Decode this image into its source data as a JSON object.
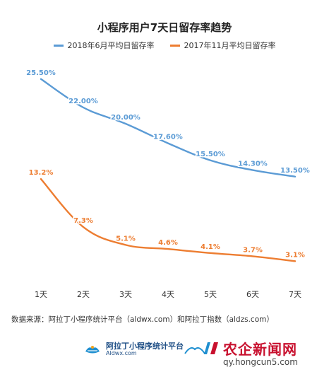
{
  "chart_data": {
    "type": "line",
    "title": "小程序用户7天日留存率趋势",
    "categories": [
      "1天",
      "2天",
      "3天",
      "4天",
      "5天",
      "6天",
      "7天"
    ],
    "ylim": [
      0,
      30
    ],
    "grid": false,
    "legend_position": "top-center",
    "series": [
      {
        "name": "2018年6月平均日留存率",
        "color": "#5b9bd5",
        "values": [
          25.5,
          22.0,
          20.0,
          17.6,
          15.5,
          14.3,
          13.5
        ],
        "labels": [
          "25.50%",
          "22.00%",
          "20.00%",
          "17.60%",
          "15.50%",
          "14.30%",
          "13.50%"
        ]
      },
      {
        "name": "2017年11月平均日留存率",
        "color": "#ed7d31",
        "values": [
          13.2,
          7.3,
          5.1,
          4.6,
          4.1,
          3.7,
          3.1
        ],
        "labels": [
          "13.2%",
          "7.3%",
          "5.1%",
          "4.6%",
          "4.1%",
          "3.7%",
          "3.1%"
        ]
      }
    ]
  },
  "source_note": "数据来源：阿拉丁小程序统计平台（aldwx.com）和阿拉丁指数（aldzs.com）",
  "footer": {
    "brand_name": "阿拉丁小程序统计平台",
    "brand_url": "Aldwx.com",
    "watermark_name": "农企新闻网",
    "watermark_url": "qy.hongcun5.com"
  }
}
